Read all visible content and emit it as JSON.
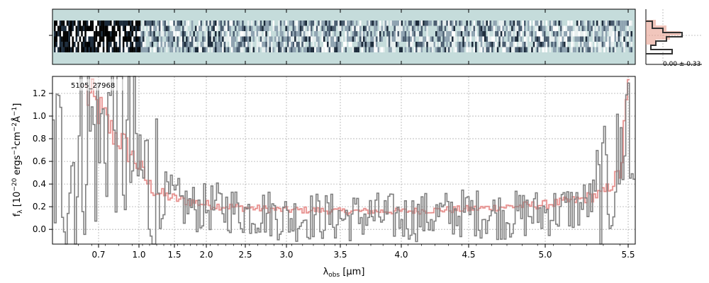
{
  "colors": {
    "background": "#ffffff",
    "spectrum_gray": "#808080",
    "model_red": "#f4a6a6",
    "model_dark_red": "#b03a2e",
    "image_bg": "#c5dcdb",
    "profile_dark": "#333333",
    "profile_red": "#e8a090"
  },
  "chart_data": [
    {
      "type": "line",
      "name": "1D spectrum",
      "object_label": "5105_27968",
      "xlabel": "λ_obs [μm]",
      "ylabel": "f_λ [10^-20 ergs^-1 cm^-2 Å^-1]",
      "x_scale": "nonlinear (resolution-based, compressed at red end)",
      "x_ticks": [
        "0.7",
        "1.0",
        "1.5",
        "2.0",
        "2.5",
        "3.0",
        "3.5",
        "4.0",
        "4.5",
        "5.0",
        "5.5"
      ],
      "x_tick_values": [
        0.7,
        1.0,
        1.5,
        2.0,
        2.5,
        3.0,
        3.5,
        4.0,
        4.5,
        5.0,
        5.5
      ],
      "y_ticks": [
        "0.0",
        "0.2",
        "0.4",
        "0.6",
        "0.8",
        "1.0",
        "1.2"
      ],
      "ylim": [
        -0.13,
        1.35
      ],
      "grid": true,
      "series": [
        {
          "role": "data (step, gray)",
          "x": [
            0.55,
            0.62,
            0.7,
            0.78,
            0.85,
            0.92,
            1.0,
            1.1,
            1.2,
            1.35,
            1.5,
            1.7,
            1.9,
            2.1,
            2.3,
            2.5,
            2.75,
            3.0,
            3.25,
            3.5,
            3.75,
            4.0,
            4.25,
            4.5,
            4.75,
            5.0,
            5.2,
            5.35,
            5.45,
            5.5
          ],
          "values": [
            0.6,
            0.9,
            0.7,
            1.1,
            0.9,
            0.6,
            0.5,
            0.4,
            0.35,
            0.3,
            0.25,
            0.2,
            0.18,
            0.2,
            0.18,
            0.15,
            0.15,
            0.1,
            0.12,
            0.1,
            0.12,
            0.1,
            0.12,
            0.15,
            0.12,
            0.15,
            0.2,
            0.3,
            0.6,
            1.2
          ]
        },
        {
          "role": "model (step, light red)",
          "x": [
            0.6,
            0.7,
            0.8,
            0.85,
            0.9,
            1.0,
            1.1,
            1.2,
            1.35,
            1.5,
            1.7,
            1.9,
            2.1,
            2.3,
            2.5,
            2.75,
            3.0,
            3.25,
            3.5,
            3.75,
            4.0,
            4.25,
            4.5,
            4.75,
            5.0,
            5.2,
            5.35,
            5.45,
            5.5
          ],
          "values": [
            1.2,
            1.05,
            0.85,
            0.8,
            0.72,
            0.55,
            0.42,
            0.34,
            0.3,
            0.27,
            0.25,
            0.23,
            0.21,
            0.2,
            0.19,
            0.18,
            0.17,
            0.17,
            0.16,
            0.16,
            0.16,
            0.17,
            0.18,
            0.2,
            0.22,
            0.26,
            0.32,
            0.5,
            1.3
          ]
        }
      ]
    },
    {
      "type": "heatmap",
      "name": "2D spectrum",
      "description_label": "",
      "colormap": "gray-blue"
    },
    {
      "type": "line",
      "name": "cross-dispersion profile",
      "annotation": "0.00 ± 0.33"
    }
  ]
}
